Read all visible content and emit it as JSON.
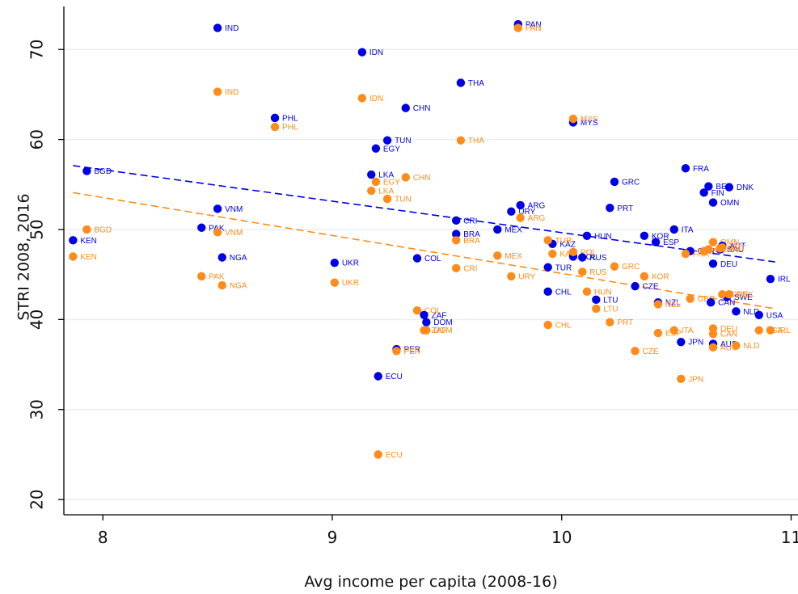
{
  "chart_data": {
    "type": "scatter",
    "title": "",
    "xlabel": "Avg income per capita (2008-16)",
    "ylabel": "STRI 2008, 2016",
    "xlim": [
      7.83,
      11.03
    ],
    "ylim": [
      18.3,
      75.5
    ],
    "xticks": [
      "8",
      "9",
      "10",
      "11"
    ],
    "yticks": [
      "20",
      "30",
      "40",
      "50",
      "60",
      "70"
    ],
    "grid": "horizontal",
    "legend": "none",
    "colors": {
      "series_2008": "#0000e6",
      "series_2016": "#ff8c1a",
      "grid": "#e8eef2",
      "axis": "#000000"
    },
    "series": [
      {
        "color": "#0000e6",
        "trend": [
          [
            7.87,
            57.1
          ],
          [
            10.93,
            46.4
          ]
        ],
        "points": [
          {
            "x": 7.87,
            "y": 48.8,
            "label": "KEN"
          },
          {
            "x": 7.93,
            "y": 56.5,
            "label": "BGD"
          },
          {
            "x": 8.43,
            "y": 50.2,
            "label": "PAK"
          },
          {
            "x": 8.5,
            "y": 72.4,
            "label": "IND"
          },
          {
            "x": 8.5,
            "y": 52.3,
            "label": "VNM"
          },
          {
            "x": 8.52,
            "y": 46.9,
            "label": "NGA"
          },
          {
            "x": 8.75,
            "y": 62.4,
            "label": "PHL"
          },
          {
            "x": 9.01,
            "y": 46.3,
            "label": "UKR"
          },
          {
            "x": 9.13,
            "y": 69.7,
            "label": "IDN"
          },
          {
            "x": 9.17,
            "y": 56.1,
            "label": "LKA"
          },
          {
            "x": 9.19,
            "y": 59.0,
            "label": "EGY"
          },
          {
            "x": 9.2,
            "y": 33.7,
            "label": "ECU"
          },
          {
            "x": 9.24,
            "y": 59.9,
            "label": "TUN"
          },
          {
            "x": 9.28,
            "y": 36.7,
            "label": "PER"
          },
          {
            "x": 9.32,
            "y": 63.5,
            "label": "CHN"
          },
          {
            "x": 9.37,
            "y": 46.8,
            "label": "COL"
          },
          {
            "x": 9.4,
            "y": 40.5,
            "label": "ZAF"
          },
          {
            "x": 9.41,
            "y": 39.7,
            "label": "DOM"
          },
          {
            "x": 9.54,
            "y": 49.5,
            "label": "BRA"
          },
          {
            "x": 9.54,
            "y": 51.0,
            "label": "CRI"
          },
          {
            "x": 9.56,
            "y": 66.3,
            "label": "THA"
          },
          {
            "x": 9.72,
            "y": 50.0,
            "label": "MEX"
          },
          {
            "x": 9.78,
            "y": 52.0,
            "label": "URY"
          },
          {
            "x": 9.81,
            "y": 72.8,
            "label": "PAN"
          },
          {
            "x": 9.82,
            "y": 52.7,
            "label": "ARG"
          },
          {
            "x": 9.94,
            "y": 43.1,
            "label": "CHL"
          },
          {
            "x": 9.94,
            "y": 45.8,
            "label": "TUR"
          },
          {
            "x": 9.96,
            "y": 48.4,
            "label": "KAZ"
          },
          {
            "x": 10.05,
            "y": 61.9,
            "label": "MYS"
          },
          {
            "x": 10.05,
            "y": 47.0,
            "label": "POL"
          },
          {
            "x": 10.09,
            "y": 46.9,
            "label": "RUS"
          },
          {
            "x": 10.11,
            "y": 49.3,
            "label": "HUN"
          },
          {
            "x": 10.15,
            "y": 42.2,
            "label": "LTU"
          },
          {
            "x": 10.21,
            "y": 52.4,
            "label": "PRT"
          },
          {
            "x": 10.23,
            "y": 55.3,
            "label": "GRC"
          },
          {
            "x": 10.32,
            "y": 43.7,
            "label": "CZE"
          },
          {
            "x": 10.36,
            "y": 49.3,
            "label": "KOR"
          },
          {
            "x": 10.41,
            "y": 48.6,
            "label": "ESP"
          },
          {
            "x": 10.42,
            "y": 41.9,
            "label": "NZL"
          },
          {
            "x": 10.49,
            "y": 50.0,
            "label": "ITA"
          },
          {
            "x": 10.52,
            "y": 37.5,
            "label": "JPN"
          },
          {
            "x": 10.54,
            "y": 56.8,
            "label": "FRA"
          },
          {
            "x": 10.56,
            "y": 47.6,
            "label": "GBR"
          },
          {
            "x": 10.62,
            "y": 54.1,
            "label": "FIN"
          },
          {
            "x": 10.64,
            "y": 54.8,
            "label": "BEL"
          },
          {
            "x": 10.65,
            "y": 41.9,
            "label": "CAN"
          },
          {
            "x": 10.66,
            "y": 53.0,
            "label": "OMN"
          },
          {
            "x": 10.66,
            "y": 46.2,
            "label": "DEU"
          },
          {
            "x": 10.66,
            "y": 37.3,
            "label": "AUS"
          },
          {
            "x": 10.69,
            "y": 47.8,
            "label": "SAU"
          },
          {
            "x": 10.7,
            "y": 48.2,
            "label": "AUT"
          },
          {
            "x": 10.72,
            "y": 42.5,
            "label": "SWE"
          },
          {
            "x": 10.73,
            "y": 54.7,
            "label": "DNK"
          },
          {
            "x": 10.76,
            "y": 40.9,
            "label": "NLD"
          },
          {
            "x": 10.86,
            "y": 40.5,
            "label": "USA"
          },
          {
            "x": 10.91,
            "y": 44.5,
            "label": "IRL"
          }
        ]
      },
      {
        "color": "#ff8c1a",
        "trend": [
          [
            7.87,
            54.1
          ],
          [
            10.93,
            41.2
          ]
        ],
        "points": [
          {
            "x": 7.87,
            "y": 47.0,
            "label": "KEN"
          },
          {
            "x": 7.93,
            "y": 50.0,
            "label": "BGD"
          },
          {
            "x": 8.43,
            "y": 44.8,
            "label": "PAK"
          },
          {
            "x": 8.5,
            "y": 65.3,
            "label": "IND"
          },
          {
            "x": 8.5,
            "y": 49.7,
            "label": "VNM"
          },
          {
            "x": 8.52,
            "y": 43.8,
            "label": "NGA"
          },
          {
            "x": 8.75,
            "y": 61.4,
            "label": "PHL"
          },
          {
            "x": 9.01,
            "y": 44.1,
            "label": "UKR"
          },
          {
            "x": 9.13,
            "y": 64.6,
            "label": "IDN"
          },
          {
            "x": 9.17,
            "y": 54.3,
            "label": "LKA"
          },
          {
            "x": 9.19,
            "y": 55.3,
            "label": "EGY"
          },
          {
            "x": 9.2,
            "y": 25.0,
            "label": "ECU"
          },
          {
            "x": 9.24,
            "y": 53.4,
            "label": "TUN"
          },
          {
            "x": 9.28,
            "y": 36.5,
            "label": "PER"
          },
          {
            "x": 9.32,
            "y": 55.8,
            "label": "CHN"
          },
          {
            "x": 9.37,
            "y": 41.0,
            "label": "COL"
          },
          {
            "x": 9.4,
            "y": 38.8,
            "label": "ZAF"
          },
          {
            "x": 9.41,
            "y": 38.8,
            "label": "DOM"
          },
          {
            "x": 9.54,
            "y": 48.8,
            "label": "BRA"
          },
          {
            "x": 9.54,
            "y": 45.7,
            "label": "CRI"
          },
          {
            "x": 9.56,
            "y": 59.9,
            "label": "THA"
          },
          {
            "x": 9.72,
            "y": 47.1,
            "label": "MEX"
          },
          {
            "x": 9.78,
            "y": 44.8,
            "label": "URY"
          },
          {
            "x": 9.81,
            "y": 72.4,
            "label": "PAN"
          },
          {
            "x": 9.82,
            "y": 51.3,
            "label": "ARG"
          },
          {
            "x": 9.94,
            "y": 39.4,
            "label": "CHL"
          },
          {
            "x": 9.94,
            "y": 48.8,
            "label": "TUR"
          },
          {
            "x": 9.96,
            "y": 47.3,
            "label": "KAZ"
          },
          {
            "x": 10.05,
            "y": 62.3,
            "label": "MYS"
          },
          {
            "x": 10.05,
            "y": 47.5,
            "label": "POL"
          },
          {
            "x": 10.09,
            "y": 45.3,
            "label": "RUS"
          },
          {
            "x": 10.11,
            "y": 43.1,
            "label": "HUN"
          },
          {
            "x": 10.15,
            "y": 41.2,
            "label": "LTU"
          },
          {
            "x": 10.21,
            "y": 39.7,
            "label": "PRT"
          },
          {
            "x": 10.23,
            "y": 45.9,
            "label": "GRC"
          },
          {
            "x": 10.32,
            "y": 36.5,
            "label": "CZE"
          },
          {
            "x": 10.36,
            "y": 44.8,
            "label": "KOR"
          },
          {
            "x": 10.42,
            "y": 38.5,
            "label": "ESP"
          },
          {
            "x": 10.42,
            "y": 41.7,
            "label": "NZL"
          },
          {
            "x": 10.49,
            "y": 38.8,
            "label": "ITA"
          },
          {
            "x": 10.52,
            "y": 33.4,
            "label": "JPN"
          },
          {
            "x": 10.54,
            "y": 47.3,
            "label": "FRA"
          },
          {
            "x": 10.56,
            "y": 42.3,
            "label": "GBR"
          },
          {
            "x": 10.62,
            "y": 47.6,
            "label": "FIN"
          },
          {
            "x": 10.64,
            "y": 47.8,
            "label": "BEL"
          },
          {
            "x": 10.66,
            "y": 38.4,
            "label": "CAN"
          },
          {
            "x": 10.66,
            "y": 48.6,
            "label": "OMN"
          },
          {
            "x": 10.66,
            "y": 39.0,
            "label": "DEU"
          },
          {
            "x": 10.66,
            "y": 36.9,
            "label": "AUS"
          },
          {
            "x": 10.69,
            "y": 47.9,
            "label": "SAU"
          },
          {
            "x": 10.7,
            "y": 48.0,
            "label": "AUT"
          },
          {
            "x": 10.7,
            "y": 42.8,
            "label": "SWE"
          },
          {
            "x": 10.73,
            "y": 42.8,
            "label": "DNK"
          },
          {
            "x": 10.76,
            "y": 37.1,
            "label": "NLD"
          },
          {
            "x": 10.86,
            "y": 38.8,
            "label": "USA"
          },
          {
            "x": 10.91,
            "y": 38.8,
            "label": "IRL"
          }
        ]
      }
    ]
  }
}
